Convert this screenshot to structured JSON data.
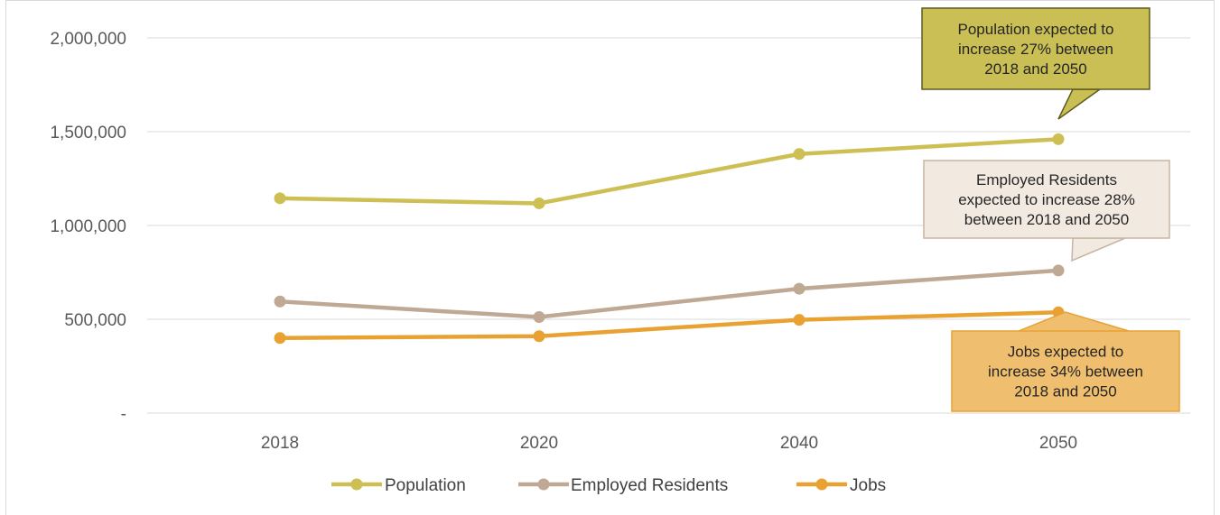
{
  "chart_data": {
    "type": "line",
    "title": "",
    "xlabel": "",
    "ylabel": "",
    "categories": [
      "2018",
      "2020",
      "2040",
      "2050"
    ],
    "ylim": [
      0,
      2000000
    ],
    "yticks": [
      {
        "value": 0,
        "label": "-"
      },
      {
        "value": 500000,
        "label": "500,000"
      },
      {
        "value": 1000000,
        "label": "1,000,000"
      },
      {
        "value": 1500000,
        "label": "1,500,000"
      },
      {
        "value": 2000000,
        "label": "2,000,000"
      }
    ],
    "grid": true,
    "legend_position": "bottom",
    "series": [
      {
        "name": "Population",
        "color": "#cdbf54",
        "values": [
          1145000,
          1118000,
          1381000,
          1460000
        ]
      },
      {
        "name": "Employed Residents",
        "color": "#bfa995",
        "values": [
          595000,
          512000,
          663000,
          760000
        ]
      },
      {
        "name": "Jobs",
        "color": "#e9a232",
        "values": [
          400000,
          410000,
          497000,
          537000
        ]
      }
    ],
    "annotations": [
      {
        "text": "Population expected to increase 27% between 2018 and 2050",
        "lines": [
          "Population expected to",
          "increase 27% between",
          "2018 and 2050"
        ],
        "fill": "#c9bf55",
        "border": "#5e5a1e",
        "series": "Population"
      },
      {
        "text": "Employed Residents expected to increase 28% between 2018 and 2050",
        "lines": [
          "Employed Residents",
          "expected to increase 28%",
          "between 2018 and 2050"
        ],
        "fill": "#f2e9e1",
        "border": "#c7b5a3",
        "series": "Employed Residents"
      },
      {
        "text": "Jobs expected to increase 34% between 2018 and 2050",
        "lines": [
          "Jobs expected to",
          "increase 34% between",
          "2018 and 2050"
        ],
        "fill": "#efbe6e",
        "border": "#e9a232",
        "series": "Jobs"
      }
    ]
  }
}
